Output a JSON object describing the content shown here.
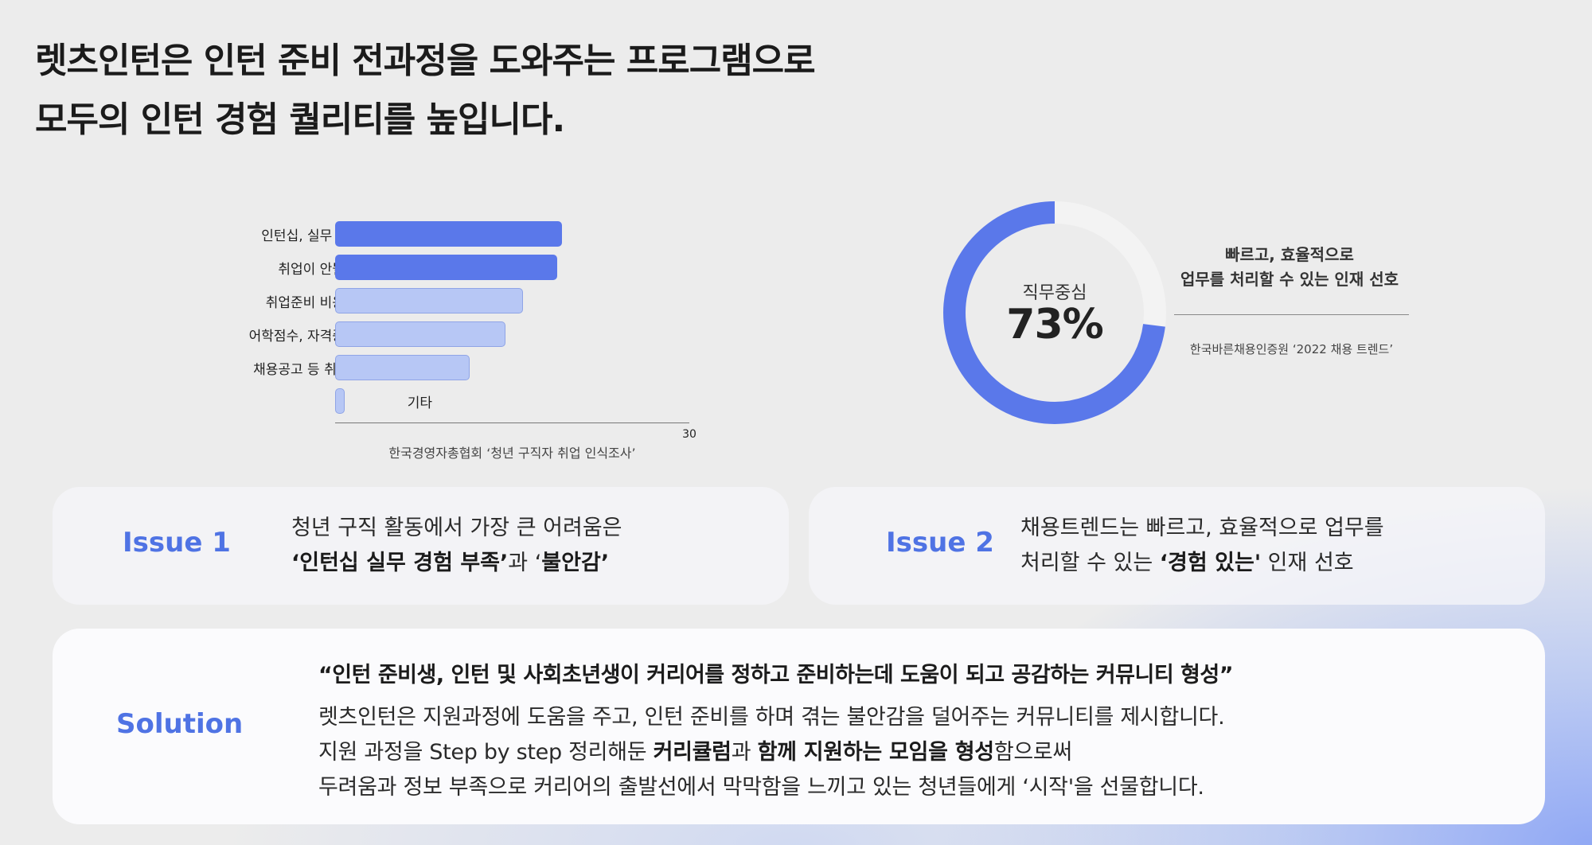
{
  "headline": {
    "line1": "렛츠인턴은 인턴 준비 전과정을 도와주는 프로그램으로",
    "line2": "모두의 인턴 경험 퀄리티를 높입니다."
  },
  "bar_chart": {
    "type": "bar",
    "orientation": "horizontal",
    "categories": [
      "인턴십, 실무 경험 등 기회부족",
      "취업이 안될 것 같은 불안감",
      "취업준비 비용 등 경제적 부담",
      "어학점수, 자격증 등 스펙 채우기",
      "채용공고 등 취업관련 정보 획득",
      "기타"
    ],
    "values": [
      19.2,
      18.8,
      15.9,
      14.4,
      11.4,
      0.8
    ],
    "colors": [
      "#5a78ea",
      "#5a78ea",
      "#b7c7f5",
      "#b7c7f5",
      "#b7c7f5",
      "#b7c7f5"
    ],
    "xlim": [
      0,
      30
    ],
    "tick_label": "30",
    "source": "한국경영자총협회 ‘청년 구직자 취업 인식조사’"
  },
  "donut": {
    "label": "직무중심",
    "value_text": "73%",
    "value": 73,
    "color": "#5a78ea",
    "rest_color": "#f3f3f3",
    "desc_line1": "빠르고, 효율적으로",
    "desc_line2": "업무를 처리할 수 있는 인재 선호",
    "source": "한국바른채용인증원 ‘2022 채용 트렌드’"
  },
  "issue1": {
    "title": "Issue 1",
    "line1": "청년 구직 활동에서 가장 큰 어려움은",
    "line2_bold1": "‘인턴십 실무 경험 부족’",
    "line2_mid": "과 ‘",
    "line2_bold2": "불안감’"
  },
  "issue2": {
    "title": "Issue 2",
    "line1": "채용트렌드는 빠르고, 효율적으로 업무를",
    "line2_pre": "처리할 수 있는 ",
    "line2_bold": "‘경험 있는'",
    "line2_post": " 인재 선호"
  },
  "solution": {
    "title": "Solution",
    "quote": "“인턴 준비생, 인턴 및 사회초년생이 커리어를 정하고 준비하는데 도움이 되고 공감하는 커뮤니티 형성”",
    "line1": "렛츠인턴은 지원과정에 도움을 주고, 인턴 준비를 하며 겪는 불안감을 덜어주는 커뮤니티를 제시합니다.",
    "line2_pre": "지원 과정을 Step by step 정리해둔 ",
    "line2_bold1": "커리큘럼",
    "line2_mid": "과 ",
    "line2_bold2": "함께 지원하는 모임을 형성",
    "line2_post": "함으로써",
    "line3": "두려움과 정보 부족으로 커리어의 출발선에서 막막함을 느끼고 있는 청년들에게 ‘시작'을 선물합니다."
  }
}
